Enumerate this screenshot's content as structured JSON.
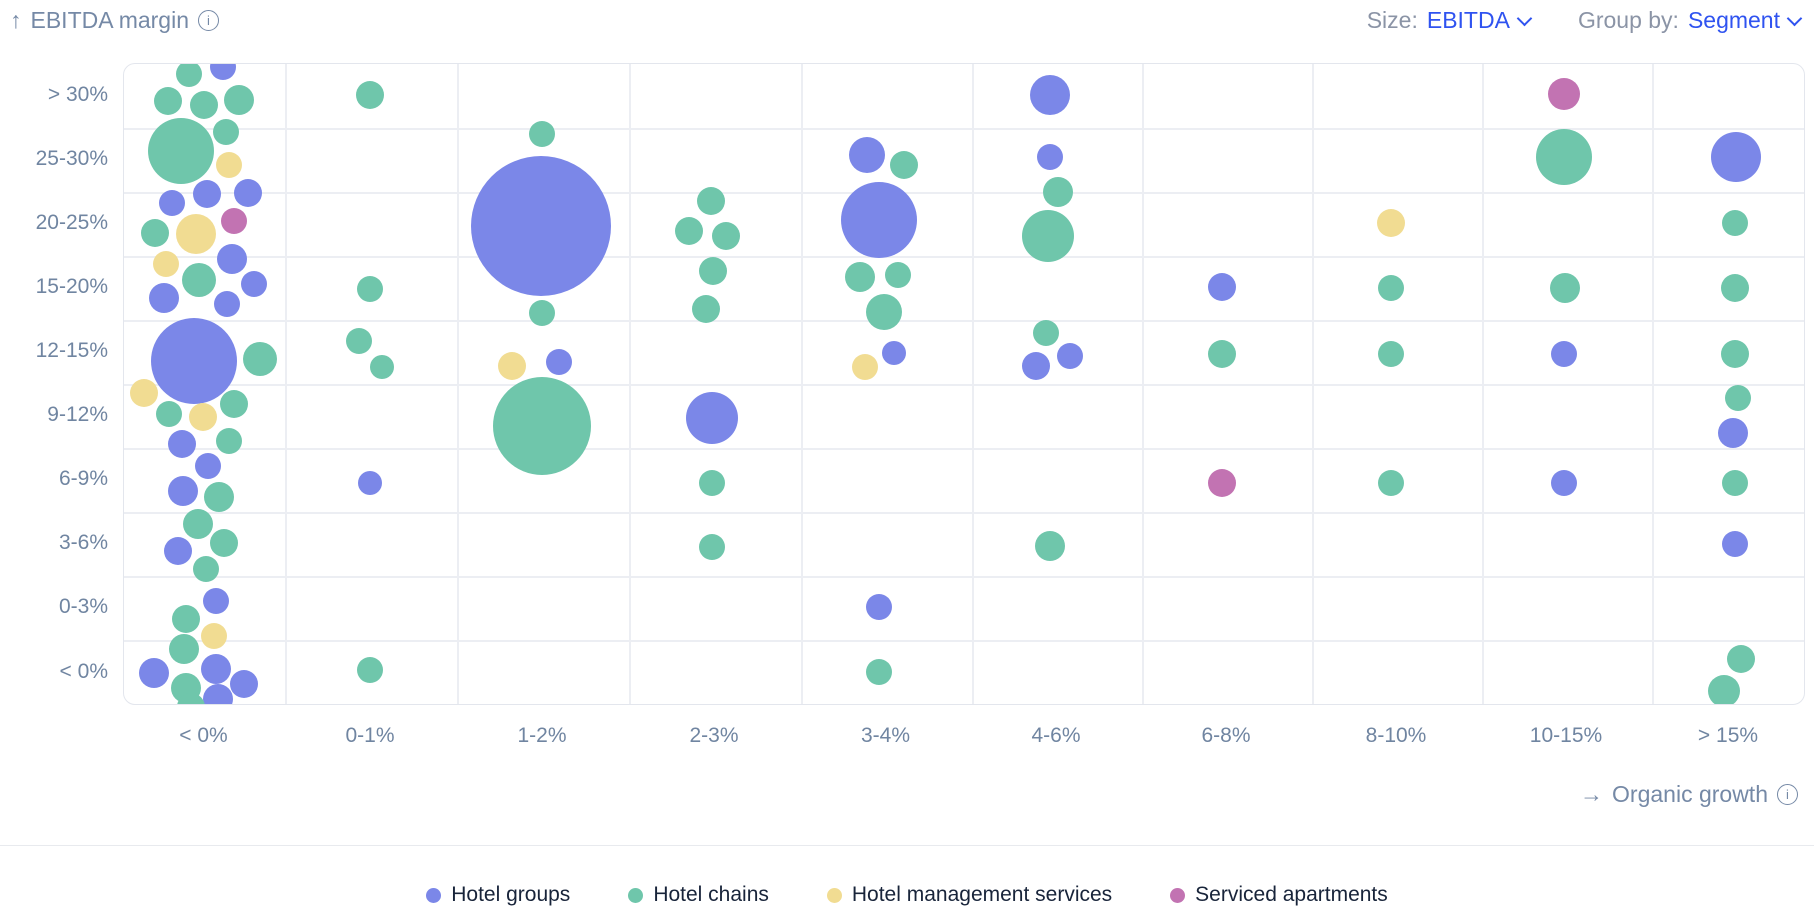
{
  "header": {
    "size_label": "Size:",
    "size_value": "EBITDA",
    "group_by_label": "Group by:",
    "group_by_value": "Segment"
  },
  "chart_data": {
    "type": "bubble",
    "x_axis": {
      "label": "Organic growth",
      "categories": [
        "< 0%",
        "0-1%",
        "1-2%",
        "2-3%",
        "3-4%",
        "4-6%",
        "6-8%",
        "8-10%",
        "10-15%",
        "> 15%"
      ]
    },
    "y_axis": {
      "label": "EBITDA margin",
      "categories_top_to_bottom": [
        "> 30%",
        "25-30%",
        "20-25%",
        "15-20%",
        "12-15%",
        "9-12%",
        "6-9%",
        "3-6%",
        "0-3%",
        "< 0%"
      ]
    },
    "legend": [
      {
        "key": "groups",
        "label": "Hotel groups",
        "color": "#7b87e8"
      },
      {
        "key": "chains",
        "label": "Hotel chains",
        "color": "#6fc6ab"
      },
      {
        "key": "mgmt",
        "label": "Hotel management services",
        "color": "#f1dc92"
      },
      {
        "key": "serviced",
        "label": "Serviced apartments",
        "color": "#c273b2"
      }
    ],
    "point_format": [
      "x_category",
      "y_category",
      "segment_key",
      "cx_px",
      "cy_px",
      "r_px"
    ],
    "points": [
      [
        "< 0%",
        "> 30%",
        "chains",
        188,
        73,
        13
      ],
      [
        "< 0%",
        "> 30%",
        "groups",
        222,
        66,
        13
      ],
      [
        "< 0%",
        "> 30%",
        "chains",
        167,
        100,
        14
      ],
      [
        "< 0%",
        "> 30%",
        "chains",
        203,
        104,
        14
      ],
      [
        "< 0%",
        "> 30%",
        "chains",
        238,
        99,
        15
      ],
      [
        "< 0%",
        "25-30%",
        "chains",
        180,
        150,
        33
      ],
      [
        "< 0%",
        "25-30%",
        "chains",
        225,
        131,
        13
      ],
      [
        "< 0%",
        "25-30%",
        "mgmt",
        228,
        164,
        13
      ],
      [
        "< 0%",
        "20-25%",
        "groups",
        171,
        202,
        13
      ],
      [
        "< 0%",
        "20-25%",
        "groups",
        206,
        193,
        14
      ],
      [
        "< 0%",
        "20-25%",
        "groups",
        247,
        192,
        14
      ],
      [
        "< 0%",
        "20-25%",
        "serviced",
        233,
        220,
        13
      ],
      [
        "< 0%",
        "20-25%",
        "chains",
        154,
        232,
        14
      ],
      [
        "< 0%",
        "20-25%",
        "mgmt",
        195,
        233,
        20
      ],
      [
        "< 0%",
        "15-20%",
        "mgmt",
        165,
        263,
        13
      ],
      [
        "< 0%",
        "15-20%",
        "groups",
        231,
        258,
        15
      ],
      [
        "< 0%",
        "15-20%",
        "chains",
        198,
        279,
        17
      ],
      [
        "< 0%",
        "15-20%",
        "groups",
        253,
        283,
        13
      ],
      [
        "< 0%",
        "15-20%",
        "groups",
        163,
        297,
        15
      ],
      [
        "< 0%",
        "15-20%",
        "groups",
        226,
        303,
        13
      ],
      [
        "< 0%",
        "12-15%",
        "groups",
        193,
        360,
        43
      ],
      [
        "< 0%",
        "12-15%",
        "chains",
        259,
        358,
        17
      ],
      [
        "< 0%",
        "9-12%",
        "mgmt",
        143,
        392,
        14
      ],
      [
        "< 0%",
        "9-12%",
        "chains",
        168,
        413,
        13
      ],
      [
        "< 0%",
        "9-12%",
        "mgmt",
        202,
        416,
        14
      ],
      [
        "< 0%",
        "9-12%",
        "chains",
        233,
        403,
        14
      ],
      [
        "< 0%",
        "9-12%",
        "groups",
        181,
        443,
        14
      ],
      [
        "< 0%",
        "9-12%",
        "chains",
        228,
        440,
        13
      ],
      [
        "< 0%",
        "6-9%",
        "groups",
        207,
        465,
        13
      ],
      [
        "< 0%",
        "6-9%",
        "groups",
        182,
        490,
        15
      ],
      [
        "< 0%",
        "6-9%",
        "chains",
        218,
        496,
        15
      ],
      [
        "< 0%",
        "3-6%",
        "chains",
        197,
        523,
        15
      ],
      [
        "< 0%",
        "3-6%",
        "chains",
        223,
        542,
        14
      ],
      [
        "< 0%",
        "3-6%",
        "groups",
        177,
        550,
        14
      ],
      [
        "< 0%",
        "3-6%",
        "chains",
        205,
        568,
        13
      ],
      [
        "< 0%",
        "0-3%",
        "groups",
        215,
        600,
        13
      ],
      [
        "< 0%",
        "0-3%",
        "chains",
        185,
        618,
        14
      ],
      [
        "< 0%",
        "0-3%",
        "mgmt",
        213,
        635,
        13
      ],
      [
        "< 0%",
        "< 0%",
        "chains",
        183,
        648,
        15
      ],
      [
        "< 0%",
        "< 0%",
        "groups",
        153,
        672,
        15
      ],
      [
        "< 0%",
        "< 0%",
        "groups",
        215,
        668,
        15
      ],
      [
        "< 0%",
        "< 0%",
        "groups",
        243,
        683,
        14
      ],
      [
        "< 0%",
        "< 0%",
        "chains",
        185,
        687,
        15
      ],
      [
        "< 0%",
        "< 0%",
        "groups",
        217,
        698,
        15
      ],
      [
        "< 0%",
        "< 0%",
        "chains",
        190,
        706,
        14
      ],
      [
        "0-1%",
        "> 30%",
        "chains",
        369,
        94,
        14
      ],
      [
        "0-1%",
        "15-20%",
        "chains",
        369,
        288,
        13
      ],
      [
        "0-1%",
        "12-15%",
        "chains",
        358,
        340,
        13
      ],
      [
        "0-1%",
        "12-15%",
        "chains",
        381,
        366,
        12
      ],
      [
        "0-1%",
        "6-9%",
        "groups",
        369,
        482,
        12
      ],
      [
        "0-1%",
        "< 0%",
        "chains",
        369,
        669,
        13
      ],
      [
        "1-2%",
        "25-30%",
        "chains",
        541,
        133,
        13
      ],
      [
        "1-2%",
        "20-25%",
        "groups",
        540,
        225,
        70
      ],
      [
        "1-2%",
        "15-20%",
        "chains",
        541,
        312,
        13
      ],
      [
        "1-2%",
        "12-15%",
        "mgmt",
        511,
        365,
        14
      ],
      [
        "1-2%",
        "12-15%",
        "groups",
        558,
        361,
        13
      ],
      [
        "1-2%",
        "9-12%",
        "chains",
        541,
        425,
        49
      ],
      [
        "2-3%",
        "20-25%",
        "chains",
        710,
        200,
        14
      ],
      [
        "2-3%",
        "20-25%",
        "chains",
        688,
        230,
        14
      ],
      [
        "2-3%",
        "20-25%",
        "chains",
        725,
        235,
        14
      ],
      [
        "2-3%",
        "15-20%",
        "chains",
        712,
        270,
        14
      ],
      [
        "2-3%",
        "15-20%",
        "chains",
        705,
        308,
        14
      ],
      [
        "2-3%",
        "9-12%",
        "groups",
        711,
        417,
        26
      ],
      [
        "2-3%",
        "6-9%",
        "chains",
        711,
        482,
        13
      ],
      [
        "2-3%",
        "3-6%",
        "chains",
        711,
        546,
        13
      ],
      [
        "3-4%",
        "25-30%",
        "groups",
        866,
        154,
        18
      ],
      [
        "3-4%",
        "25-30%",
        "chains",
        903,
        164,
        14
      ],
      [
        "3-4%",
        "20-25%",
        "groups",
        878,
        219,
        38
      ],
      [
        "3-4%",
        "15-20%",
        "chains",
        859,
        276,
        15
      ],
      [
        "3-4%",
        "15-20%",
        "chains",
        897,
        274,
        13
      ],
      [
        "3-4%",
        "15-20%",
        "chains",
        883,
        311,
        18
      ],
      [
        "3-4%",
        "12-15%",
        "groups",
        893,
        352,
        12
      ],
      [
        "3-4%",
        "12-15%",
        "mgmt",
        864,
        366,
        13
      ],
      [
        "3-4%",
        "0-3%",
        "groups",
        878,
        606,
        13
      ],
      [
        "3-4%",
        "< 0%",
        "chains",
        878,
        671,
        13
      ],
      [
        "4-6%",
        "> 30%",
        "groups",
        1049,
        94,
        20
      ],
      [
        "4-6%",
        "25-30%",
        "groups",
        1049,
        156,
        13
      ],
      [
        "4-6%",
        "20-25%",
        "chains",
        1057,
        191,
        15
      ],
      [
        "4-6%",
        "20-25%",
        "chains",
        1047,
        235,
        26
      ],
      [
        "4-6%",
        "12-15%",
        "chains",
        1045,
        332,
        13
      ],
      [
        "4-6%",
        "12-15%",
        "groups",
        1035,
        365,
        14
      ],
      [
        "4-6%",
        "12-15%",
        "groups",
        1069,
        355,
        13
      ],
      [
        "4-6%",
        "3-6%",
        "chains",
        1049,
        545,
        15
      ],
      [
        "6-8%",
        "15-20%",
        "groups",
        1221,
        286,
        14
      ],
      [
        "6-8%",
        "12-15%",
        "chains",
        1221,
        353,
        14
      ],
      [
        "6-8%",
        "6-9%",
        "serviced",
        1221,
        482,
        14
      ],
      [
        "8-10%",
        "20-25%",
        "mgmt",
        1390,
        222,
        14
      ],
      [
        "8-10%",
        "15-20%",
        "chains",
        1390,
        287,
        13
      ],
      [
        "8-10%",
        "12-15%",
        "chains",
        1390,
        353,
        13
      ],
      [
        "8-10%",
        "6-9%",
        "chains",
        1390,
        482,
        13
      ],
      [
        "10-15%",
        "> 30%",
        "serviced",
        1563,
        93,
        16
      ],
      [
        "10-15%",
        "25-30%",
        "chains",
        1563,
        156,
        28
      ],
      [
        "10-15%",
        "15-20%",
        "chains",
        1564,
        287,
        15
      ],
      [
        "10-15%",
        "12-15%",
        "groups",
        1563,
        353,
        13
      ],
      [
        "10-15%",
        "6-9%",
        "groups",
        1563,
        482,
        13
      ],
      [
        "> 15%",
        "25-30%",
        "groups",
        1735,
        156,
        25
      ],
      [
        "> 15%",
        "20-25%",
        "chains",
        1734,
        222,
        13
      ],
      [
        "> 15%",
        "15-20%",
        "chains",
        1734,
        287,
        14
      ],
      [
        "> 15%",
        "12-15%",
        "chains",
        1734,
        353,
        14
      ],
      [
        "> 15%",
        "9-12%",
        "chains",
        1737,
        397,
        13
      ],
      [
        "> 15%",
        "9-12%",
        "groups",
        1732,
        432,
        15
      ],
      [
        "> 15%",
        "6-9%",
        "chains",
        1734,
        482,
        13
      ],
      [
        "> 15%",
        "3-6%",
        "groups",
        1734,
        543,
        13
      ],
      [
        "> 15%",
        "< 0%",
        "chains",
        1740,
        658,
        14
      ],
      [
        "> 15%",
        "< 0%",
        "chains",
        1723,
        690,
        16
      ]
    ]
  }
}
